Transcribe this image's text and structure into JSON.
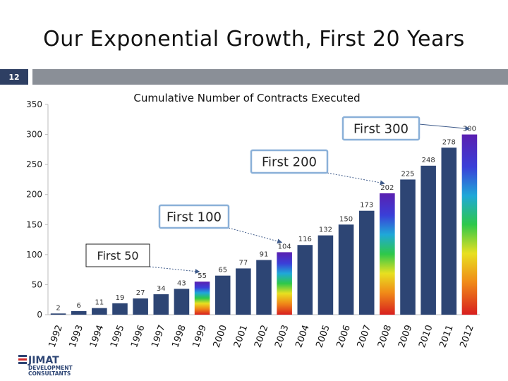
{
  "slide": {
    "title": "Our Exponential Growth, First 20 Years",
    "number": "12"
  },
  "chart_data": {
    "type": "bar",
    "title": "Cumulative Number of Contracts Executed",
    "xlabel": "",
    "ylabel": "",
    "ylim": [
      0,
      350
    ],
    "yticks": [
      0,
      50,
      100,
      150,
      200,
      250,
      300,
      350
    ],
    "categories": [
      "1992",
      "1993",
      "1994",
      "1995",
      "1996",
      "1997",
      "1998",
      "1999",
      "2000",
      "2001",
      "2002",
      "2003",
      "2004",
      "2005",
      "2006",
      "2007",
      "2008",
      "2009",
      "2010",
      "2011",
      "2012"
    ],
    "values": [
      2,
      6,
      11,
      19,
      27,
      34,
      43,
      55,
      65,
      77,
      91,
      104,
      116,
      132,
      150,
      173,
      202,
      225,
      248,
      278,
      300
    ],
    "milestone_years": [
      "1999",
      "2003",
      "2008",
      "2012"
    ],
    "callouts": [
      {
        "label": "First 50",
        "target": "1999"
      },
      {
        "label": "First 100",
        "target": "2003"
      },
      {
        "label": "First 200",
        "target": "2008"
      },
      {
        "label": "First 300",
        "target": "2012"
      }
    ],
    "colors": {
      "bar": "#2d4574",
      "callout_border": "#8ab0d8",
      "arrow": "#3f5b8a"
    }
  },
  "logo": {
    "mark": "JIMAT",
    "line1": "DEVELOPMENT",
    "line2": "CONSULTANTS"
  }
}
